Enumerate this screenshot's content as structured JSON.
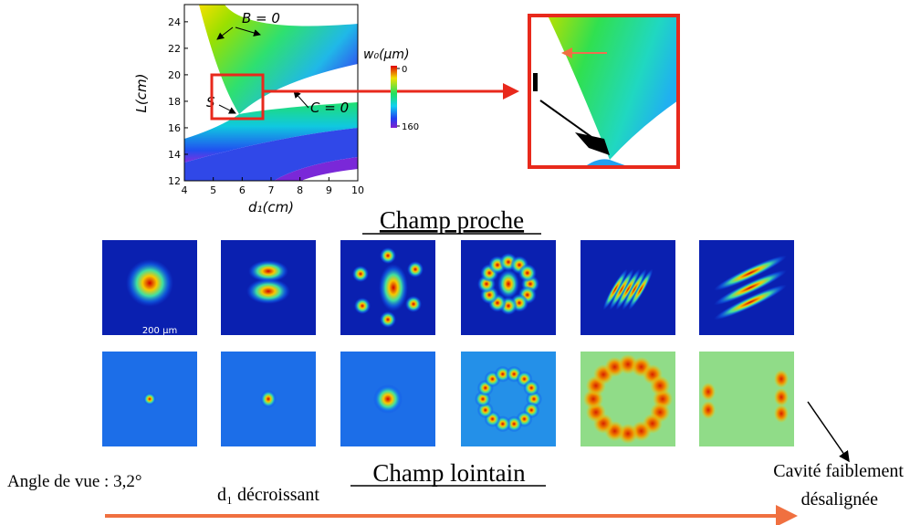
{
  "chart_data": {
    "type": "heatmap",
    "xlabel": "d₁(cm)",
    "ylabel": "L(cm)",
    "xlim": [
      4,
      10
    ],
    "ylim": [
      12,
      25.3
    ],
    "xticks": [
      4,
      5,
      6,
      7,
      8,
      9,
      10
    ],
    "yticks": [
      12,
      14,
      16,
      18,
      20,
      22,
      24
    ],
    "colorbar": {
      "label": "w₀(μm)",
      "lim": [
        0,
        160
      ],
      "ticks": [
        0,
        160
      ]
    },
    "annotations": [
      "B = 0",
      "C = 0",
      "S"
    ]
  },
  "near_field_title": "Champ proche",
  "scale_bar": "200 μm",
  "far_field_title": "Champ lointain",
  "view_angle": "Angle de vue : 3,2°",
  "arrow_label": "d₁ décroissant",
  "note": [
    "Cavité faiblement",
    "désalignée"
  ]
}
